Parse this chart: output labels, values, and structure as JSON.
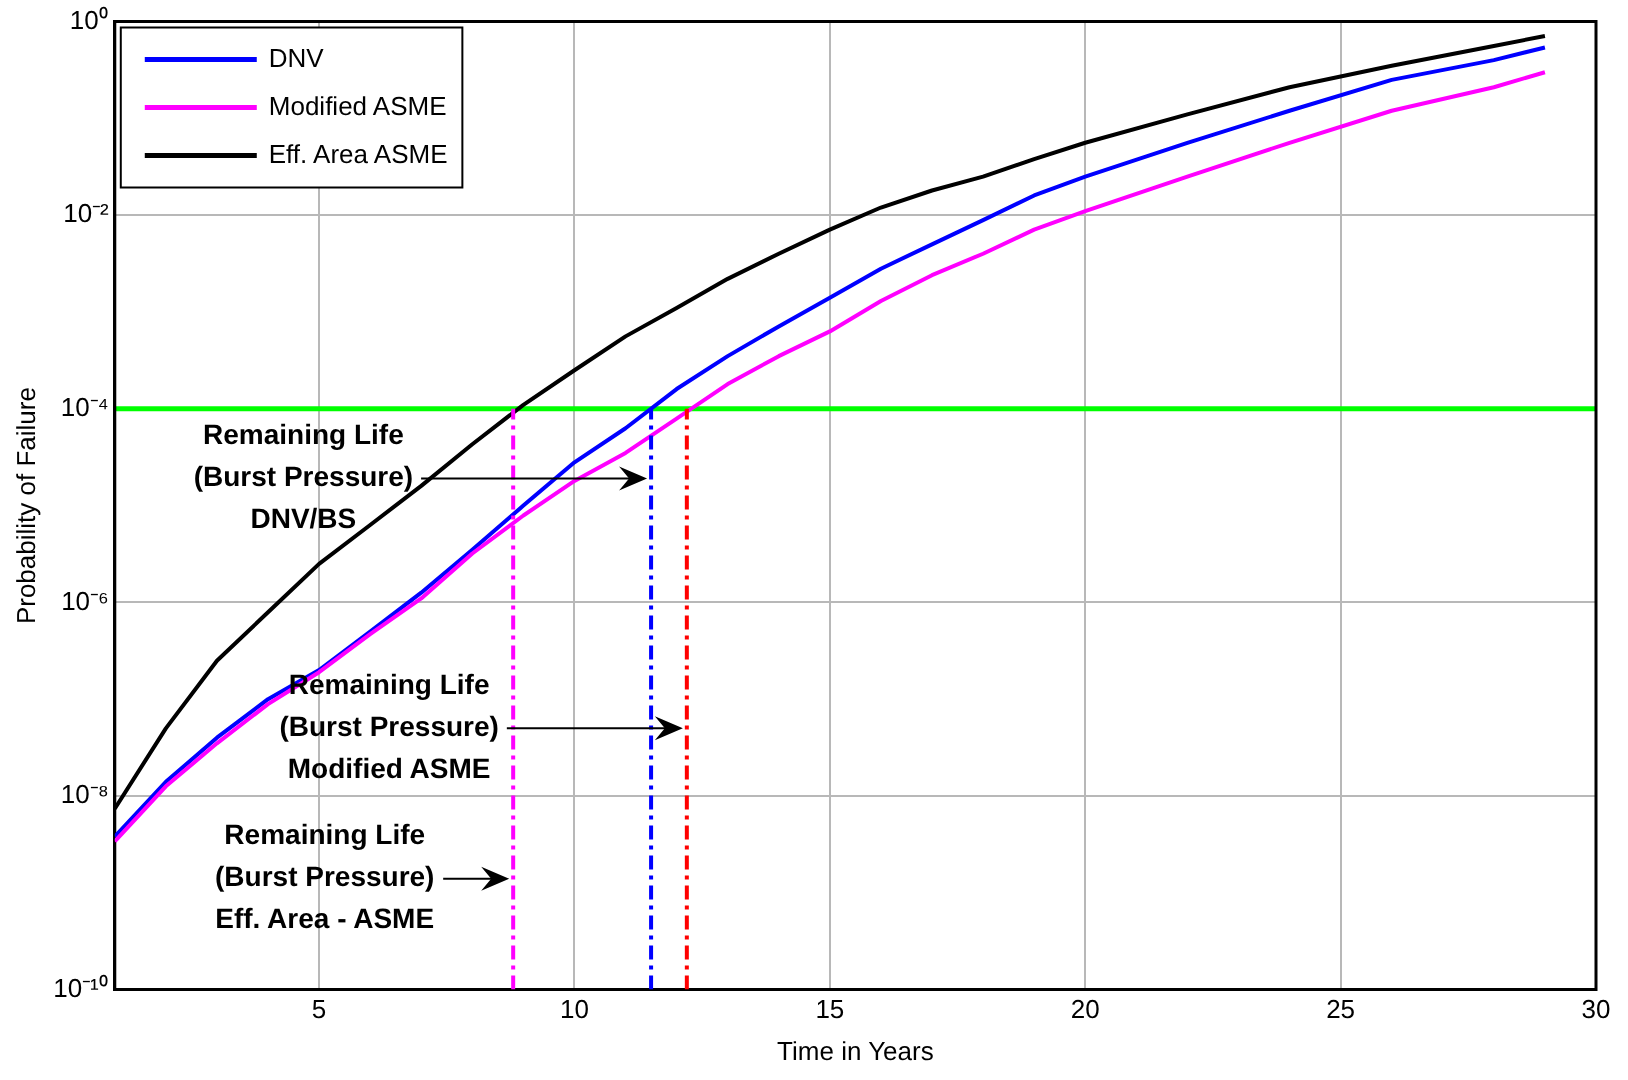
{
  "chart_data": {
    "type": "line",
    "xlabel": "Time in Years",
    "ylabel": "Probability of Failure",
    "x": [
      1,
      2,
      3,
      4,
      5,
      6,
      7,
      8,
      9,
      10,
      11,
      12,
      13,
      14,
      15,
      16,
      17,
      18,
      19,
      20,
      22,
      24,
      26,
      28,
      29
    ],
    "series": [
      {
        "name": "DNV",
        "color": "#0000ff",
        "values": [
          3.8e-09,
          1.4e-08,
          4e-08,
          1e-07,
          2e-07,
          5e-07,
          1.26e-06,
          3.5e-06,
          1e-05,
          2.8e-05,
          6.3e-05,
          0.00016,
          0.00035,
          0.00071,
          0.0014,
          0.0028,
          0.005,
          0.0089,
          0.016,
          0.025,
          0.056,
          0.12,
          0.25,
          0.4,
          0.54
        ]
      },
      {
        "name": "Modified ASME",
        "color": "#ff00ff",
        "values": [
          3.4e-09,
          1.26e-08,
          3.5e-08,
          8.9e-08,
          1.9e-07,
          4.7e-07,
          1.1e-06,
          3.2e-06,
          7.9e-06,
          1.8e-05,
          3.5e-05,
          7.9e-05,
          0.00018,
          0.00035,
          0.00063,
          0.0013,
          0.0024,
          0.004,
          0.0071,
          0.011,
          0.025,
          0.056,
          0.12,
          0.21,
          0.3
        ]
      },
      {
        "name": "Eff. Area ASME",
        "color": "#000000",
        "values": [
          7.4e-09,
          5e-08,
          2.5e-07,
          7.9e-07,
          2.5e-06,
          6.3e-06,
          1.6e-05,
          4.3e-05,
          0.00011,
          0.00025,
          0.00056,
          0.0011,
          0.0022,
          0.004,
          0.0071,
          0.012,
          0.018,
          0.025,
          0.038,
          0.056,
          0.11,
          0.21,
          0.35,
          0.56,
          0.71
        ]
      },
      {
        "color": "#ff00ff",
        "line_style": "dashed",
        "x": [
          8.8,
          8.8
        ],
        "values": [
          1e-10,
          0.0001
        ]
      },
      {
        "color": "#0000ff",
        "line_style": "dashed",
        "x": [
          11.5,
          11.5
        ],
        "values": [
          1e-10,
          0.0001
        ]
      },
      {
        "color": "#ff0000",
        "line_style": "dashed",
        "x": [
          12.2,
          12.2
        ],
        "values": [
          1e-10,
          0.0001
        ]
      }
    ],
    "ref_lines": [
      {
        "axis": "y",
        "value": 0.0001,
        "color": "#00ff00"
      }
    ],
    "annotations": [
      {
        "text": "Remaining Life\n(Burst Pressure)\nDNV/BS",
        "x": 11.5,
        "y": 1.9e-05
      },
      {
        "text": "Remaining Life\n(Burst Pressure)\nModified ASME",
        "x": 12.2,
        "y": 5e-08
      },
      {
        "text": "Remaining Life\n(Burst Pressure)\nEff. Area - ASME",
        "x": 8.8,
        "y": 1.4e-09
      }
    ],
    "xlim": [
      1,
      30
    ],
    "xticks": [
      5,
      10,
      15,
      20,
      25,
      30
    ],
    "ylim": [
      1e-10,
      1
    ],
    "yticks": [
      {
        "value": 1e-10,
        "label": "10⁻¹⁰"
      },
      {
        "value": 1e-08,
        "label": "10⁻⁸"
      },
      {
        "value": 1e-06,
        "label": "10⁻⁶"
      },
      {
        "value": 0.0001,
        "label": "10⁻⁴"
      },
      {
        "value": 0.01,
        "label": "10⁻²"
      },
      {
        "value": 1,
        "label": "10⁰"
      }
    ],
    "log": true,
    "grid": true,
    "legend": "top left",
    "marker": "none",
    "line_style": "solid"
  }
}
